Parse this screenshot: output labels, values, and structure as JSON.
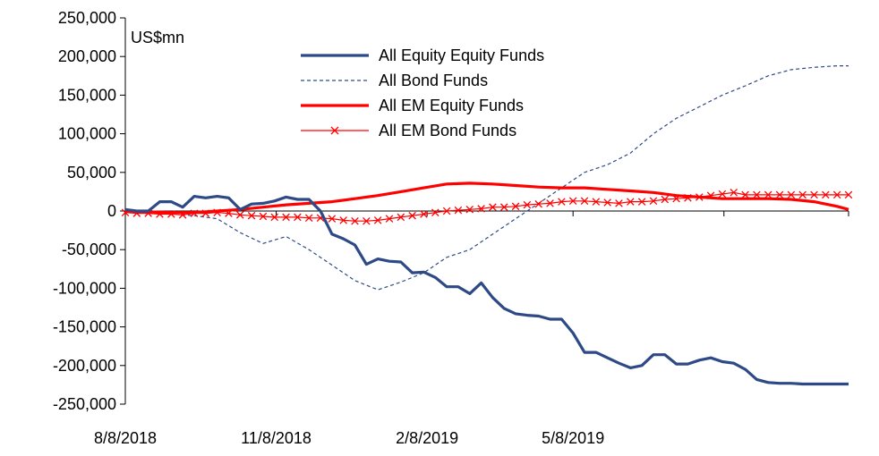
{
  "chart_data": {
    "type": "line",
    "title": "",
    "unit_label": "US$mn",
    "xlabel": "",
    "ylabel": "",
    "ylim": [
      -250000,
      250000
    ],
    "yticks": [
      250000,
      200000,
      150000,
      100000,
      50000,
      0,
      -50000,
      -100000,
      -150000,
      -200000,
      -250000
    ],
    "ytick_labels": [
      "250,000",
      "200,000",
      "150,000",
      "100,000",
      "50,000",
      "0",
      "-50,000",
      "-100,000",
      "-150,000",
      "-200,000",
      "-250,000"
    ],
    "x_start": "8/8/2018",
    "x_end": "10/23/2019",
    "xtick_labels": [
      "8/8/2018",
      "11/8/2018",
      "2/8/2019",
      "5/8/2019"
    ],
    "xticks": [
      "2018-08-08",
      "2018-11-08",
      "2019-02-08",
      "2019-05-08",
      "2019-08-08",
      "2019-10-23"
    ],
    "legend_position": "top-center",
    "grid": false,
    "colors": {
      "equity": "#2e4a86",
      "bond": "#2e4a86",
      "em_equity": "#ff0000",
      "em_bond": "#ff0000"
    },
    "series": [
      {
        "name": "All Equity Equity Funds",
        "color": "#2e4a86",
        "style": "solid-thick",
        "x": [
          "2018-08-08",
          "2018-08-15",
          "2018-08-22",
          "2018-08-29",
          "2018-09-05",
          "2018-09-12",
          "2018-09-19",
          "2018-09-26",
          "2018-10-03",
          "2018-10-10",
          "2018-10-17",
          "2018-10-24",
          "2018-10-31",
          "2018-11-07",
          "2018-11-14",
          "2018-11-21",
          "2018-11-28",
          "2018-12-05",
          "2018-12-12",
          "2018-12-19",
          "2018-12-26",
          "2019-01-02",
          "2019-01-09",
          "2019-01-16",
          "2019-01-23",
          "2019-01-30",
          "2019-02-06",
          "2019-02-13",
          "2019-02-20",
          "2019-02-27",
          "2019-03-06",
          "2019-03-13",
          "2019-03-20",
          "2019-03-27",
          "2019-04-03",
          "2019-04-10",
          "2019-04-17",
          "2019-04-24",
          "2019-05-01",
          "2019-05-08",
          "2019-05-15",
          "2019-05-22",
          "2019-05-29",
          "2019-06-05",
          "2019-06-12",
          "2019-06-19",
          "2019-06-26",
          "2019-07-03",
          "2019-07-10",
          "2019-07-17",
          "2019-07-24",
          "2019-07-31",
          "2019-08-07",
          "2019-08-14",
          "2019-08-21",
          "2019-08-28",
          "2019-09-04",
          "2019-09-11",
          "2019-09-18",
          "2019-09-25",
          "2019-10-02",
          "2019-10-09",
          "2019-10-16",
          "2019-10-23"
        ],
        "y": [
          2000,
          0,
          0,
          12000,
          12000,
          5000,
          19000,
          17000,
          19000,
          17000,
          2000,
          9000,
          10000,
          13000,
          18000,
          15000,
          15000,
          0,
          -30000,
          -36000,
          -44000,
          -69000,
          -62000,
          -65000,
          -66000,
          -80000,
          -79000,
          -86000,
          -98000,
          -98000,
          -107000,
          -93000,
          -112000,
          -126000,
          -133000,
          -135000,
          -136000,
          -140000,
          -140000,
          -158000,
          -183000,
          -183000,
          -190000,
          -197000,
          -203000,
          -200000,
          -186000,
          -186000,
          -198000,
          -198000,
          -193000,
          -190000,
          -195000,
          -197000,
          -205000,
          -218000,
          -222000,
          -223000,
          -223000,
          -224000,
          -224000,
          -224000,
          -224000,
          -224000
        ]
      },
      {
        "name": "All Bond Funds",
        "color": "#2e4a86",
        "style": "dashed-thin",
        "x": [
          "2018-08-08",
          "2018-08-22",
          "2018-09-05",
          "2018-09-19",
          "2018-10-03",
          "2018-10-17",
          "2018-10-31",
          "2018-11-14",
          "2018-11-28",
          "2018-12-12",
          "2018-12-26",
          "2019-01-09",
          "2019-01-23",
          "2019-02-06",
          "2019-02-20",
          "2019-03-06",
          "2019-03-20",
          "2019-04-03",
          "2019-04-17",
          "2019-05-01",
          "2019-05-15",
          "2019-05-29",
          "2019-06-12",
          "2019-06-26",
          "2019-07-10",
          "2019-07-24",
          "2019-08-07",
          "2019-08-21",
          "2019-09-04",
          "2019-09-18",
          "2019-10-02",
          "2019-10-16",
          "2019-10-23"
        ],
        "y": [
          0,
          -2000,
          -4000,
          -6000,
          -10000,
          -28000,
          -42000,
          -33000,
          -50000,
          -70000,
          -90000,
          -102000,
          -92000,
          -80000,
          -60000,
          -50000,
          -30000,
          -10000,
          10000,
          30000,
          50000,
          60000,
          75000,
          100000,
          120000,
          135000,
          150000,
          162000,
          175000,
          183000,
          186000,
          188000,
          188000
        ]
      },
      {
        "name": "All EM Equity Funds",
        "color": "#ff0000",
        "style": "solid-thick",
        "x": [
          "2018-08-08",
          "2018-08-22",
          "2018-09-05",
          "2018-09-19",
          "2018-10-03",
          "2018-10-17",
          "2018-10-31",
          "2018-11-14",
          "2018-11-28",
          "2018-12-12",
          "2018-12-26",
          "2019-01-09",
          "2019-01-23",
          "2019-02-06",
          "2019-02-20",
          "2019-03-06",
          "2019-03-20",
          "2019-04-03",
          "2019-04-17",
          "2019-05-01",
          "2019-05-15",
          "2019-05-29",
          "2019-06-12",
          "2019-06-26",
          "2019-07-10",
          "2019-07-24",
          "2019-08-07",
          "2019-08-21",
          "2019-09-04",
          "2019-09-18",
          "2019-10-02",
          "2019-10-16",
          "2019-10-23"
        ],
        "y": [
          0,
          -1000,
          -2000,
          -2000,
          0,
          2000,
          5000,
          8000,
          10000,
          12000,
          16000,
          20000,
          25000,
          30000,
          35000,
          36000,
          35000,
          33000,
          31000,
          30000,
          30000,
          28000,
          26000,
          24000,
          20000,
          18000,
          16000,
          16000,
          16000,
          15000,
          12000,
          6000,
          2000
        ]
      },
      {
        "name": "All EM Bond Funds",
        "color": "#ff0000",
        "style": "thin-x-markers",
        "x": [
          "2018-08-08",
          "2018-08-15",
          "2018-08-22",
          "2018-08-29",
          "2018-09-05",
          "2018-09-12",
          "2018-09-19",
          "2018-09-26",
          "2018-10-03",
          "2018-10-10",
          "2018-10-17",
          "2018-10-24",
          "2018-10-31",
          "2018-11-07",
          "2018-11-14",
          "2018-11-21",
          "2018-11-28",
          "2018-12-05",
          "2018-12-12",
          "2018-12-19",
          "2018-12-26",
          "2019-01-02",
          "2019-01-09",
          "2019-01-16",
          "2019-01-23",
          "2019-01-30",
          "2019-02-06",
          "2019-02-13",
          "2019-02-20",
          "2019-02-27",
          "2019-03-06",
          "2019-03-13",
          "2019-03-20",
          "2019-03-27",
          "2019-04-03",
          "2019-04-10",
          "2019-04-17",
          "2019-04-24",
          "2019-05-01",
          "2019-05-08",
          "2019-05-15",
          "2019-05-22",
          "2019-05-29",
          "2019-06-05",
          "2019-06-12",
          "2019-06-19",
          "2019-06-26",
          "2019-07-03",
          "2019-07-10",
          "2019-07-17",
          "2019-07-24",
          "2019-07-31",
          "2019-08-07",
          "2019-08-14",
          "2019-08-21",
          "2019-08-28",
          "2019-09-04",
          "2019-09-11",
          "2019-09-18",
          "2019-09-25",
          "2019-10-02",
          "2019-10-09",
          "2019-10-16",
          "2019-10-23"
        ],
        "y": [
          -2000,
          -3000,
          -3000,
          -4000,
          -4000,
          -5000,
          -3000,
          -3000,
          -2000,
          -3000,
          -5000,
          -6000,
          -7000,
          -8000,
          -8000,
          -8000,
          -9000,
          -9000,
          -10000,
          -12000,
          -13000,
          -13000,
          -12000,
          -10000,
          -8000,
          -6000,
          -4000,
          -2000,
          0,
          1000,
          2000,
          3000,
          5000,
          5000,
          6000,
          8000,
          9000,
          10000,
          12000,
          13000,
          13000,
          12000,
          11000,
          10000,
          12000,
          12000,
          13000,
          15000,
          16000,
          17000,
          18000,
          20000,
          22000,
          24000,
          21000,
          21000,
          21000,
          21000,
          21000,
          21000,
          21000,
          21000,
          21000,
          21000
        ]
      }
    ]
  }
}
